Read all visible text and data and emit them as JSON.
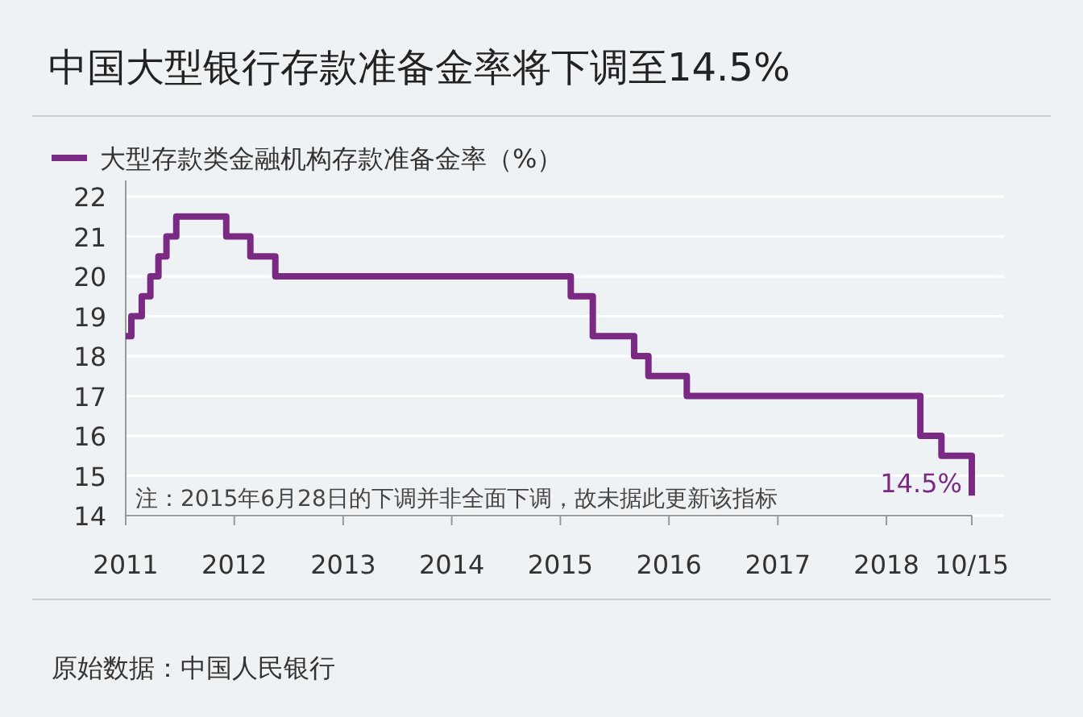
{
  "chart_data": {
    "type": "step",
    "title": "中国大型银行存款准备金率将下调至14.5%",
    "x": [
      "2011-01-01",
      "2011-01-20",
      "2011-02-24",
      "2011-03-25",
      "2011-04-21",
      "2011-05-18",
      "2011-06-20",
      "2011-12-05",
      "2012-02-24",
      "2012-05-18",
      "2015-02-05",
      "2015-04-20",
      "2015-09-06",
      "2015-10-24",
      "2016-03-01",
      "2018-04-25",
      "2018-07-05",
      "2018-10-15"
    ],
    "series": [
      {
        "name": "大型存款类金融机构存款准备金率（%）",
        "color": "#7b2a83",
        "values": [
          18.5,
          19,
          19.5,
          20,
          20.5,
          21,
          21.5,
          21,
          20.5,
          20,
          19.5,
          18.5,
          18,
          17.5,
          17,
          16,
          15.5,
          14.5
        ]
      }
    ],
    "xlim": [
      "2011-01-01",
      "2018-10-15"
    ],
    "xticks": [
      {
        "value": "2011-01-01",
        "label": "2011"
      },
      {
        "value": "2012-01-01",
        "label": "2012"
      },
      {
        "value": "2013-01-01",
        "label": "2013"
      },
      {
        "value": "2014-01-01",
        "label": "2014"
      },
      {
        "value": "2015-01-01",
        "label": "2015"
      },
      {
        "value": "2016-01-01",
        "label": "2016"
      },
      {
        "value": "2017-01-01",
        "label": "2017"
      },
      {
        "value": "2018-01-01",
        "label": "2018"
      },
      {
        "value": "2018-10-15",
        "label": "10/15"
      }
    ],
    "ylim": [
      14,
      22
    ],
    "yticks": [
      14,
      15,
      16,
      17,
      18,
      19,
      20,
      21,
      22
    ],
    "grid": "y",
    "legend": "top left",
    "line_style": "solid",
    "annotations": [
      "注：2015年6月28日的下调并非全面下调，故未据此更新该指标",
      {
        "text": "14.5%",
        "x": "2018-10-15",
        "y": 14.5
      },
      "原始数据：中国人民银行"
    ]
  }
}
